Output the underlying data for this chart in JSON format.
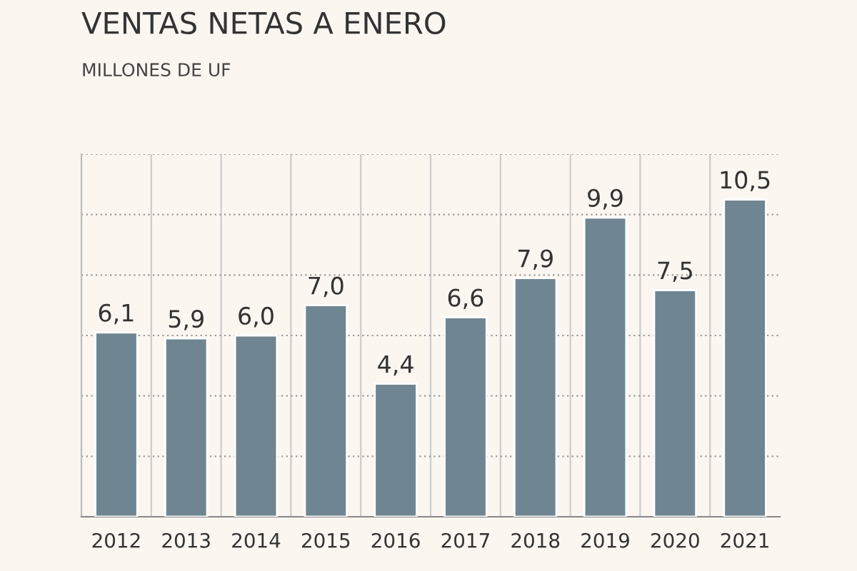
{
  "chart_data": {
    "type": "bar",
    "title": "VENTAS NETAS A ENERO",
    "subtitle": "MILLONES DE UF",
    "categories": [
      "2012",
      "2013",
      "2014",
      "2015",
      "2016",
      "2017",
      "2018",
      "2019",
      "2020",
      "2021"
    ],
    "values": [
      6.1,
      5.9,
      6.0,
      7.0,
      4.4,
      6.6,
      7.9,
      9.9,
      7.5,
      10.5
    ],
    "value_labels": [
      "6,1",
      "5,9",
      "6,0",
      "7,0",
      "4,4",
      "6,6",
      "7,9",
      "9,9",
      "7,5",
      "10,5"
    ],
    "color": "#6f8692",
    "ylim": [
      0,
      12
    ],
    "yticks": [
      {
        "value": 0,
        "label": null
      },
      {
        "value": 2,
        "label": null
      },
      {
        "value": 4,
        "label": null
      },
      {
        "value": 6,
        "label": null
      },
      {
        "value": 8,
        "label": null
      },
      {
        "value": 10,
        "label": null
      },
      {
        "value": 12,
        "label": null
      }
    ],
    "tick_labels": "x",
    "grid": true
  }
}
